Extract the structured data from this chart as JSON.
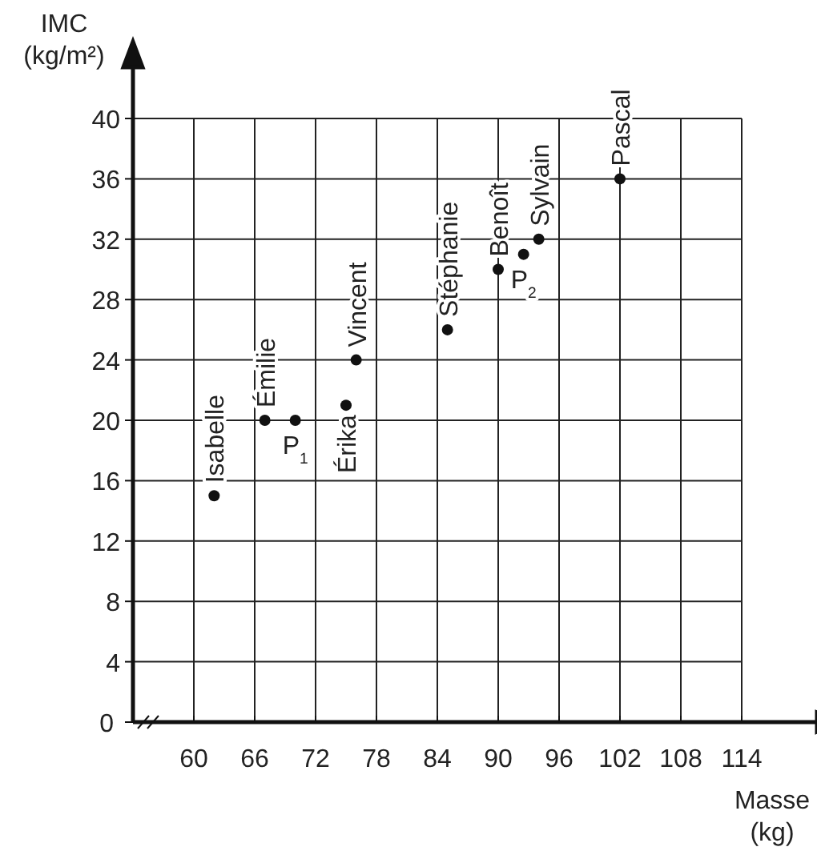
{
  "chart_data": {
    "type": "scatter",
    "xlabel": "Masse (kg)",
    "ylabel": "IMC (kg/m²)",
    "x": [
      62,
      67,
      70,
      75,
      76,
      85,
      90,
      92.5,
      94,
      102
    ],
    "values": [
      15,
      20,
      20,
      21,
      24,
      26,
      30,
      31,
      32,
      36
    ],
    "color": "#111111",
    "marker": "circle",
    "grid": true,
    "xlim": [
      54,
      114
    ],
    "xticks": [
      {
        "value": 54,
        "label": null
      },
      60,
      66,
      72,
      78,
      84,
      90,
      96,
      102,
      108,
      114
    ],
    "ylim": [
      0,
      40
    ],
    "yticks": [
      0,
      4,
      8,
      12,
      16,
      20,
      24,
      28,
      32,
      36,
      40
    ],
    "annotations": [
      {
        "text": "Isabelle",
        "x": 62,
        "y": 15
      },
      {
        "text": "Émilie",
        "x": 67,
        "y": 20
      },
      {
        "text": "P$_{1}$",
        "x": 70,
        "y": 20
      },
      {
        "text": "Érika",
        "x": 75,
        "y": 21
      },
      {
        "text": "Vincent",
        "x": 76,
        "y": 24
      },
      {
        "text": "Stéphanie",
        "x": 85,
        "y": 26
      },
      {
        "text": "Benoît",
        "x": 90,
        "y": 30
      },
      {
        "text": "P$_{2}$",
        "x": 92.5,
        "y": 31
      },
      {
        "text": "Sylvain",
        "x": 94,
        "y": 32
      },
      {
        "text": "Pascal",
        "x": 102,
        "y": 36
      }
    ]
  }
}
